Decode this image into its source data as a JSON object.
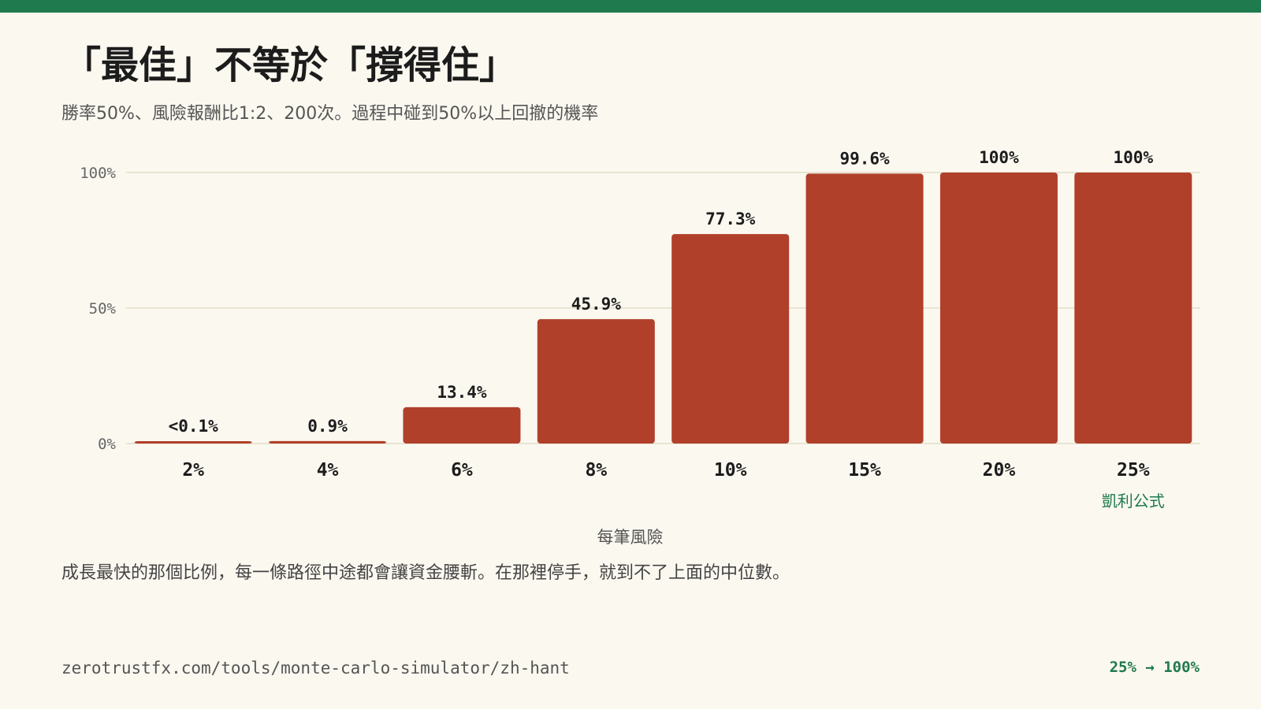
{
  "colors": {
    "accent": "#1f7a4d",
    "bar": "#b0402a",
    "background": "#fbf8f0",
    "text": "#1c1c1c",
    "muted": "#555555",
    "gridline": "#ddd6c4"
  },
  "header": {
    "title": "「最佳」不等於「撐得住」",
    "subtitle": "勝率50%、風險報酬比1:2、200次。過程中碰到50%以上回撤的機率"
  },
  "chart_data": {
    "type": "bar",
    "title": "",
    "xlabel": "每筆風險",
    "ylabel": "",
    "categories": [
      "2%",
      "4%",
      "6%",
      "8%",
      "10%",
      "15%",
      "20%",
      "25%"
    ],
    "values": [
      0.1,
      0.9,
      13.4,
      45.9,
      77.3,
      99.6,
      100,
      100
    ],
    "data_labels": [
      "<0.1%",
      "0.9%",
      "13.4%",
      "45.9%",
      "77.3%",
      "99.6%",
      "100%",
      "100%"
    ],
    "ylim": [
      0,
      100
    ],
    "yticks": [
      0,
      50,
      100
    ],
    "ytick_labels": [
      "0%",
      "50%",
      "100%"
    ],
    "grid": true,
    "annotations": [
      {
        "category": "25%",
        "text": "凱利公式"
      }
    ]
  },
  "body": {
    "text": "成長最快的那個比例，每一條路徑中途都會讓資金腰斬。在那裡停手，就到不了上面的中位數。"
  },
  "footer": {
    "url": "zerotrustfx.com/tools/monte-carlo-simulator/zh-hant",
    "stat": "25% → 100%"
  }
}
